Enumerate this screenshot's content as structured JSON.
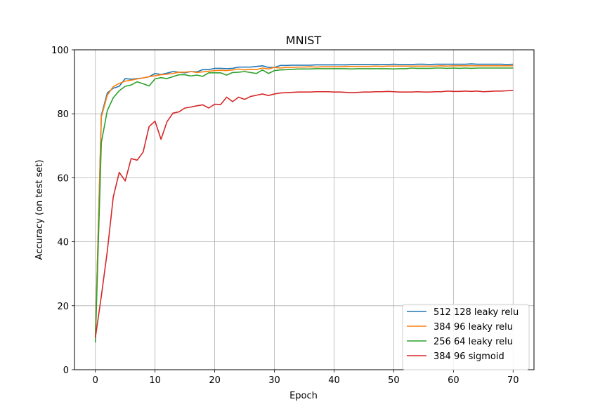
{
  "chart_data": {
    "type": "line",
    "title": "MNIST",
    "xlabel": "Epoch",
    "ylabel": "Accuracy (on test set)",
    "xlim": [
      -3.5,
      73.5
    ],
    "ylim": [
      0,
      100
    ],
    "xticks": [
      0,
      10,
      20,
      30,
      40,
      50,
      60,
      70
    ],
    "yticks": [
      0,
      20,
      40,
      60,
      80,
      100
    ],
    "grid": true,
    "legend_position": "lower-right",
    "x": [
      0,
      1,
      2,
      3,
      4,
      5,
      6,
      7,
      8,
      9,
      10,
      11,
      12,
      13,
      14,
      15,
      16,
      17,
      18,
      19,
      20,
      21,
      22,
      23,
      24,
      25,
      26,
      27,
      28,
      29,
      30,
      31,
      32,
      33,
      34,
      35,
      36,
      37,
      38,
      39,
      40,
      41,
      42,
      43,
      44,
      45,
      46,
      47,
      48,
      49,
      50,
      51,
      52,
      53,
      54,
      55,
      56,
      57,
      58,
      59,
      60,
      61,
      62,
      63,
      64,
      65,
      66,
      67,
      68,
      69,
      70
    ],
    "series": [
      {
        "name": "512 128 leaky relu",
        "color": "#1f77b4",
        "values": [
          10.0,
          79.5,
          86.5,
          88.0,
          88.6,
          91.0,
          90.8,
          91.0,
          91.2,
          91.6,
          92.6,
          92.3,
          92.7,
          93.2,
          93.0,
          92.8,
          93.2,
          93.1,
          93.8,
          93.8,
          94.2,
          94.2,
          94.1,
          94.2,
          94.6,
          94.6,
          94.6,
          94.8,
          95.0,
          94.5,
          94.5,
          95.1,
          95.1,
          95.2,
          95.2,
          95.2,
          95.2,
          95.3,
          95.3,
          95.3,
          95.3,
          95.3,
          95.3,
          95.4,
          95.4,
          95.4,
          95.4,
          95.4,
          95.4,
          95.4,
          95.5,
          95.4,
          95.4,
          95.4,
          95.5,
          95.5,
          95.4,
          95.5,
          95.5,
          95.5,
          95.5,
          95.5,
          95.5,
          95.6,
          95.5,
          95.5,
          95.5,
          95.5,
          95.5,
          95.4,
          95.5
        ]
      },
      {
        "name": "384 96 leaky relu",
        "color": "#ff7f0e",
        "values": [
          10.0,
          79.0,
          85.8,
          88.5,
          89.5,
          90.2,
          90.5,
          90.9,
          91.2,
          91.6,
          91.9,
          92.2,
          92.4,
          92.6,
          93.0,
          93.0,
          93.2,
          92.9,
          93.1,
          93.3,
          93.5,
          93.6,
          93.5,
          93.7,
          94.0,
          93.7,
          93.9,
          93.8,
          94.3,
          94.0,
          94.5,
          94.3,
          94.5,
          94.5,
          94.6,
          94.6,
          94.7,
          94.6,
          94.7,
          94.7,
          94.7,
          94.7,
          94.8,
          94.8,
          94.8,
          94.8,
          94.8,
          94.9,
          94.8,
          94.9,
          94.9,
          94.9,
          94.9,
          94.9,
          94.9,
          94.9,
          94.9,
          94.9,
          95.0,
          94.9,
          95.0,
          95.0,
          95.0,
          95.0,
          95.0,
          95.0,
          95.0,
          95.0,
          95.0,
          95.0,
          95.0
        ]
      },
      {
        "name": "256 64 leaky relu",
        "color": "#2ca02c",
        "values": [
          8.5,
          71.0,
          81.0,
          85.0,
          87.2,
          88.6,
          89.0,
          90.0,
          89.4,
          88.7,
          90.9,
          91.3,
          91.0,
          91.6,
          92.2,
          92.2,
          91.8,
          92.1,
          91.7,
          92.8,
          92.8,
          92.8,
          92.1,
          92.9,
          93.0,
          93.2,
          92.9,
          92.6,
          93.7,
          92.6,
          93.5,
          93.7,
          93.8,
          93.9,
          94.0,
          94.0,
          94.0,
          94.1,
          94.1,
          94.1,
          94.1,
          94.1,
          94.1,
          94.0,
          94.1,
          94.1,
          94.1,
          94.1,
          94.1,
          94.1,
          94.0,
          94.1,
          94.1,
          94.3,
          94.2,
          94.2,
          94.2,
          94.3,
          94.3,
          94.2,
          94.3,
          94.2,
          94.3,
          94.2,
          94.3,
          94.3,
          94.3,
          94.3,
          94.3,
          94.3,
          94.3
        ]
      },
      {
        "name": "384 96 sigmoid",
        "color": "#d62728",
        "values": [
          10.0,
          23.0,
          37.0,
          54.0,
          61.7,
          59.0,
          66.0,
          65.5,
          68.0,
          76.0,
          77.7,
          72.0,
          77.5,
          80.2,
          80.6,
          81.8,
          82.1,
          82.5,
          82.8,
          81.8,
          83.0,
          82.9,
          85.2,
          83.8,
          85.2,
          84.5,
          85.4,
          85.8,
          86.2,
          85.7,
          86.2,
          86.5,
          86.6,
          86.7,
          86.8,
          86.8,
          86.8,
          86.9,
          86.9,
          86.9,
          86.8,
          86.8,
          86.7,
          86.6,
          86.7,
          86.8,
          86.8,
          86.9,
          86.9,
          87.0,
          86.9,
          86.8,
          86.8,
          86.8,
          86.9,
          86.8,
          86.8,
          86.9,
          86.9,
          87.1,
          87.0,
          87.0,
          87.1,
          87.0,
          87.1,
          86.9,
          87.0,
          87.1,
          87.1,
          87.2,
          87.3
        ]
      }
    ]
  }
}
